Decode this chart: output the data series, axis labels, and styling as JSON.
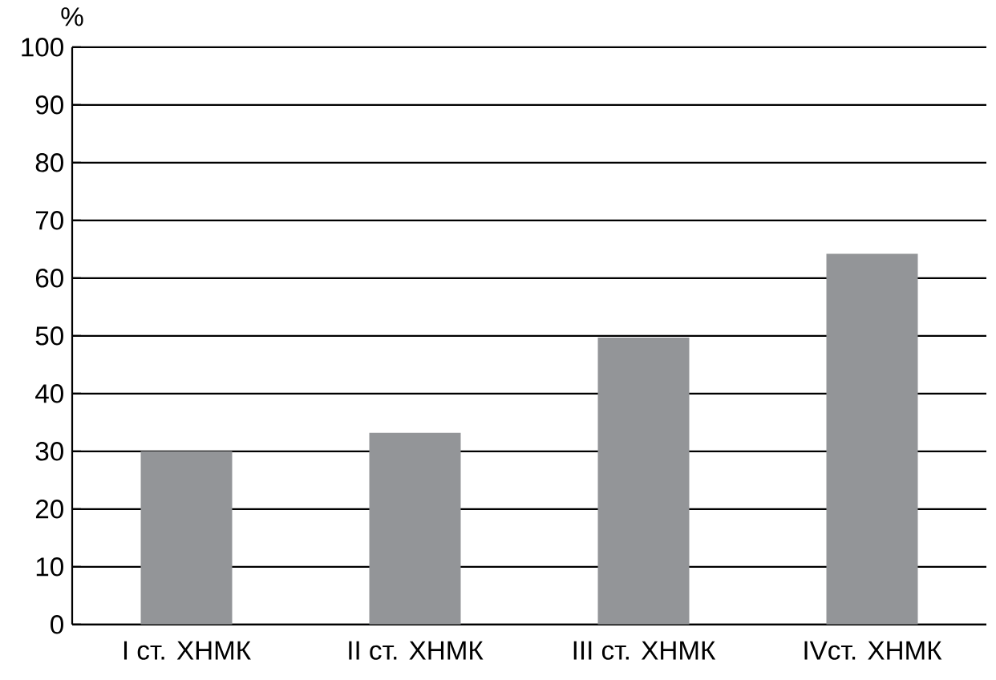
{
  "chart_data": {
    "type": "bar",
    "ylabel": "%",
    "categories": [
      "I ст. ХНМК",
      "II ст. ХНМК",
      "III ст. ХНМК",
      "IVст. ХНМК"
    ],
    "values": [
      30,
      33.2,
      49.7,
      64.2
    ],
    "color": "#939598",
    "ylim": [
      0,
      100
    ],
    "yticks": [
      0,
      10,
      20,
      30,
      40,
      50,
      60,
      70,
      80,
      90,
      100
    ],
    "grid": "y"
  }
}
